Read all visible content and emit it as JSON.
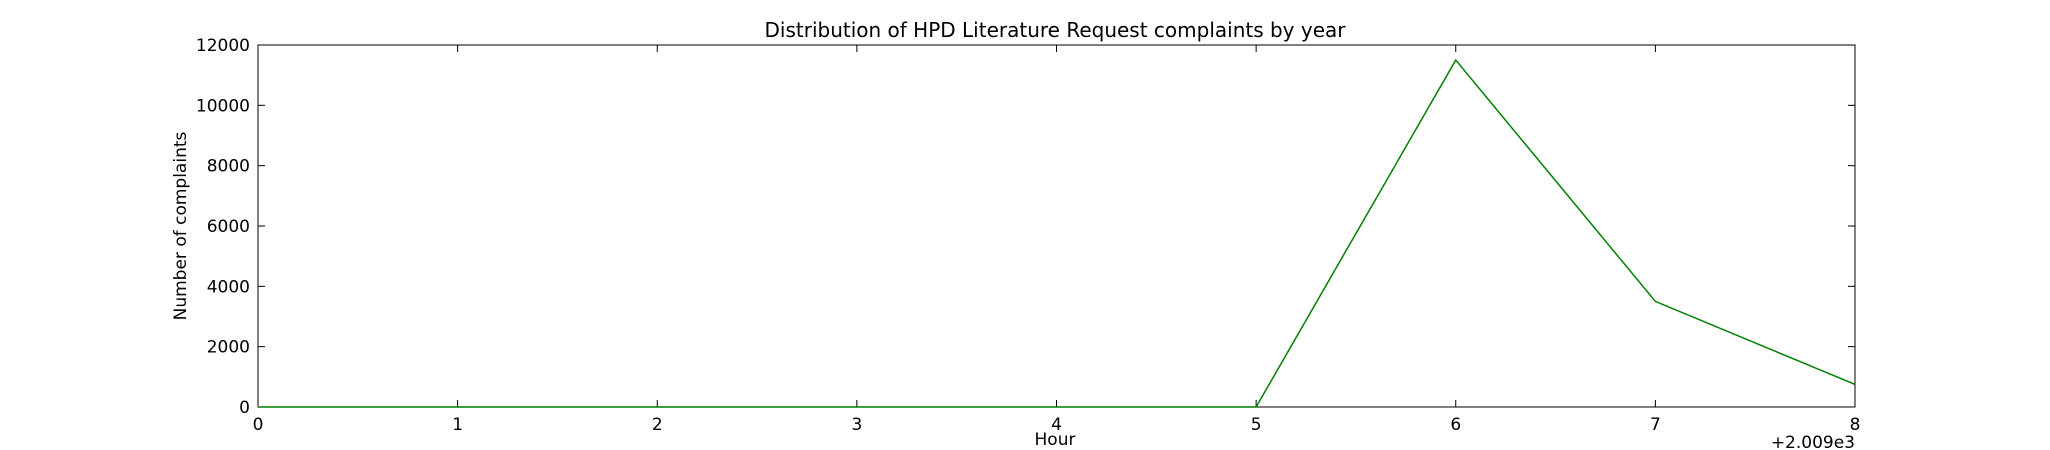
{
  "chart_data": {
    "type": "line",
    "title": "Distribution of  HPD Literature Request complaints by year",
    "xlabel": "Hour",
    "ylabel": "Number of complaints",
    "x_offset_label": "+2.009e3",
    "x": [
      2009,
      2010,
      2011,
      2012,
      2013,
      2014,
      2015,
      2016,
      2017
    ],
    "x_tick_labels": [
      "0",
      "1",
      "2",
      "3",
      "4",
      "5",
      "6",
      "7",
      "8"
    ],
    "y_tick_labels": [
      "0",
      "2000",
      "4000",
      "6000",
      "8000",
      "10000",
      "12000"
    ],
    "xlim": [
      2009,
      2017
    ],
    "ylim": [
      0,
      12000
    ],
    "grid": false,
    "series": [
      {
        "color": "#008000",
        "values": [
          0,
          0,
          0,
          0,
          0,
          0,
          11500,
          3500,
          750
        ]
      }
    ]
  }
}
